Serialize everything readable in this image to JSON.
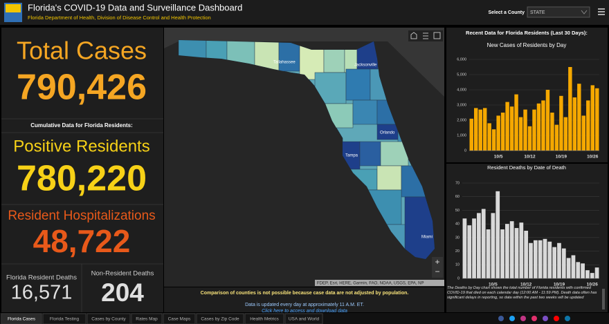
{
  "header": {
    "title": "Florida's COVID-19 Data and Surveillance Dashboard",
    "subtitle": "Florida Department of Health, Division of Disease Control and Health Protection",
    "select_label": "Select a County",
    "select_value": "STATE"
  },
  "stats": {
    "total_cases_label": "Total Cases",
    "total_cases": "790,426",
    "cumulative_label": "Cumulative Data for Florida Residents:",
    "positive_label": "Positive Residents",
    "positive": "780,220",
    "hosp_label": "Resident Hospitalizations",
    "hosp": "48,722",
    "deaths_label": "Florida Resident Deaths",
    "deaths": "16,571",
    "nonres_deaths_label": "Non-Resident Deaths",
    "nonres_deaths": "204"
  },
  "map": {
    "cities": [
      "Tallahassee",
      "Jacksonville",
      "Orlando",
      "Tampa",
      "Miami"
    ],
    "attribution": "FDEP, Esri, HERE, Garmin, FAO, NOAA, USGS, EPA, NP",
    "note": "Comparison of counties is not possible because case data are not adjusted by population.",
    "update": "Data is updated every day at approximately 11 A.M. ET.",
    "link": "Click here to access and download data"
  },
  "recent_title": "Recent Data for Florida Residents (Last 30 Days):",
  "chart_data": [
    {
      "type": "bar",
      "title": "New Cases of Residents by Day",
      "color": "#f5a800",
      "categories": [
        null,
        null,
        null,
        null,
        null,
        null,
        "10/5",
        null,
        null,
        null,
        null,
        null,
        null,
        "10/12",
        null,
        null,
        null,
        null,
        null,
        null,
        "10/19",
        null,
        null,
        null,
        null,
        null,
        null,
        "10/26",
        null
      ],
      "values": [
        2100,
        2800,
        2700,
        2800,
        1800,
        1400,
        2300,
        2500,
        3200,
        2900,
        3700,
        2200,
        2700,
        1600,
        2700,
        3100,
        3300,
        4000,
        2500,
        1700,
        3600,
        2200,
        5500,
        3500,
        4400,
        2300,
        3300,
        4300,
        4100
      ],
      "ylim": [
        0,
        6000
      ],
      "yticks": [
        0,
        {
          "value": 1000,
          "label": "1,000"
        },
        {
          "value": 2000,
          "label": "2,000"
        },
        {
          "value": 3000,
          "label": "3,000"
        },
        {
          "value": 4000,
          "label": "4,000"
        },
        {
          "value": 5000,
          "label": "5,000"
        },
        {
          "value": 6000,
          "label": "6,000"
        }
      ],
      "grid": true
    },
    {
      "type": "bar",
      "title": "Resident Deaths by Date of Death",
      "color": "#d9d9d9",
      "categories": [
        null,
        null,
        null,
        null,
        null,
        null,
        "10/5",
        null,
        null,
        null,
        null,
        null,
        null,
        "10/12",
        null,
        null,
        null,
        null,
        null,
        null,
        "10/19",
        null,
        null,
        null,
        null,
        null,
        null,
        "10/26",
        null
      ],
      "values": [
        44,
        39,
        44,
        48,
        51,
        36,
        48,
        64,
        36,
        40,
        42,
        37,
        41,
        35,
        26,
        28,
        28,
        29,
        27,
        23,
        26,
        22,
        15,
        17,
        12,
        11,
        6,
        4,
        8
      ],
      "ylim": [
        0,
        70
      ],
      "yticks": [
        0,
        10,
        20,
        30,
        40,
        50,
        60,
        70
      ],
      "grid": true,
      "note": "The Deaths by Day chart shows the total number of Florida residents with confirmed COVID-19 that died on each calendar day (12:00 AM - 11:59 PM). Death data often has significant delays in reporting, so data within the past two weeks will be updated"
    }
  ],
  "tabs": [
    "Florida Cases",
    "Florida Testing",
    "Cases by County",
    "Rates Map",
    "Case Maps",
    "Cases by Zip Code",
    "Health Metrics",
    "USA and World"
  ]
}
